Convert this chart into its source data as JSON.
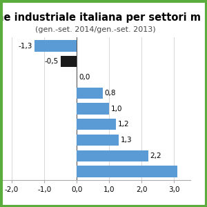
{
  "title": "one industriale italiana per settori m",
  "subtitle": "(gen.-set. 2014/gen.-set. 2013)",
  "values": [
    -1.3,
    -0.5,
    0.0,
    0.8,
    1.0,
    1.2,
    1.3,
    2.2,
    3.1
  ],
  "bar_colors": [
    "#5b9bd5",
    "#1a1a1a",
    "#5b9bd5",
    "#5b9bd5",
    "#5b9bd5",
    "#5b9bd5",
    "#5b9bd5",
    "#5b9bd5",
    "#5b9bd5"
  ],
  "labels": [
    "-1,3",
    "-0,5",
    "0,0",
    "0,8",
    "1,0",
    "1,2",
    "1,3",
    "2,2",
    ""
  ],
  "xlim": [
    -2.3,
    3.5
  ],
  "xticks": [
    -2.0,
    -1.0,
    0.0,
    1.0,
    2.0,
    3.0
  ],
  "xtick_labels": [
    "-2,0",
    "-1,0",
    "0,0",
    "1,0",
    "2,0",
    "3,0"
  ],
  "border_color": "#5aad3c",
  "background_color": "#ffffff",
  "bar_height": 0.72,
  "label_fontsize": 7.5,
  "title_fontsize": 10.5,
  "subtitle_fontsize": 8,
  "tick_fontsize": 7.5,
  "grid_color": "#d0d0d0",
  "zero_line_color": "#555555"
}
